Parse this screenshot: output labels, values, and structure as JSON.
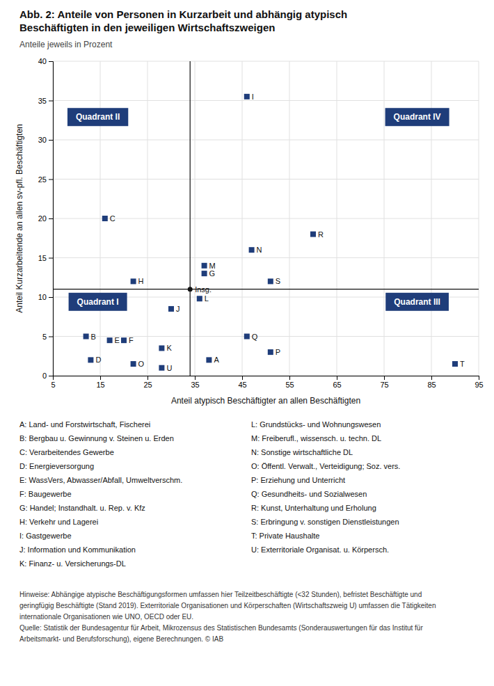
{
  "chart_data": {
    "type": "scatter",
    "title": [
      "Abb. 2: Anteile von Personen in Kurzarbeit und abhängig atypisch",
      "Beschäftigten in den jeweiligen Wirtschaftszweigen"
    ],
    "subtitle": "Anteile jeweils in Prozent",
    "xlabel": "Anteil atypisch Beschäftigter an allen Beschäftigten",
    "ylabel": "Anteil Kurzarbeitende an allen sv-pfl. Beschäftigten",
    "xlim": [
      5,
      95
    ],
    "ylim": [
      0,
      40
    ],
    "xticks": [
      5,
      15,
      25,
      35,
      45,
      55,
      65,
      75,
      85,
      95
    ],
    "yticks": [
      0,
      5,
      10,
      15,
      20,
      25,
      30,
      35,
      40
    ],
    "grid": true,
    "color": "#1f3d7a",
    "marker": "square",
    "categories": [
      "A",
      "B",
      "C",
      "D",
      "E",
      "F",
      "G",
      "H",
      "I",
      "J",
      "K",
      "L",
      "M",
      "N",
      "O",
      "P",
      "Q",
      "R",
      "S",
      "T",
      "U"
    ],
    "x": [
      38,
      12,
      16,
      13,
      17,
      20,
      37,
      22,
      46,
      30,
      28,
      36,
      37,
      47,
      22,
      51,
      46,
      60,
      51,
      90,
      28
    ],
    "values": [
      2.0,
      5.0,
      20.0,
      2.0,
      4.5,
      4.5,
      13.0,
      12.0,
      35.5,
      8.5,
      3.5,
      9.8,
      14.0,
      16.0,
      1.5,
      3.0,
      5.0,
      18.0,
      12.0,
      1.5,
      1.0
    ],
    "reference_point": {
      "label": "Insg.",
      "x": 34,
      "y": 11
    },
    "reference_lines": [
      {
        "axis": "x",
        "value": 34
      },
      {
        "axis": "y",
        "value": 11
      }
    ],
    "annotations": [
      {
        "text": "Quadrant II",
        "x": 14.5,
        "y": 32.9
      },
      {
        "text": "Quadrant IV",
        "x": 82,
        "y": 32.9
      },
      {
        "text": "Quadrant I",
        "x": 14.5,
        "y": 9.4
      },
      {
        "text": "Quadrant III",
        "x": 82,
        "y": 9.4
      }
    ],
    "key": [
      "A: Land- und Forstwirtschaft, Fischerei",
      "B: Bergbau u. Gewinnung v. Steinen u. Erden",
      "C: Verarbeitendes Gewerbe",
      "D: Energieversorgung",
      "E: WassVers, Abwasser/Abfall, Umweltverschm.",
      "F: Baugewerbe",
      "G: Handel; Instandhalt. u. Rep. v. Kfz",
      "H: Verkehr und Lagerei",
      "I: Gastgewerbe",
      "J: Information und Kommunikation",
      "K: Finanz- u. Versicherungs-DL",
      "L: Grundstücks- und Wohnungswesen",
      "M: Freiberufl., wissensch. u. techn. DL",
      "N: Sonstige wirtschaftliche DL",
      "O: Öffentl. Verwalt., Verteidigung; Soz. vers.",
      "P: Erziehung und Unterricht",
      "Q: Gesundheits- und Sozialwesen",
      "R: Kunst, Unterhaltung und Erholung",
      "S: Erbringung v. sonstigen Dienstleistungen",
      "T: Private Haushalte",
      "U: Exterritoriale Organisat. u. Körpersch."
    ],
    "footnote": [
      "Hinweise: Abhängige atypische Beschäftigungsformen umfassen hier Teilzeitbeschäftigte (<32 Stunden), befristet Beschäftigte und",
      "geringfügig Beschäftigte (Stand 2019). Exterritoriale Organisationen und Körperschaften (Wirtschaftszweig U) umfassen die Tätigkeiten",
      "internationale Organisationen wie UNO, OECD oder EU.",
      "Quelle: Statistik der Bundesagentur für Arbeit, Mikrozensus des Statistischen Bundesamts (Sonderauswertungen für das Institut für",
      "Arbeitsmarkt- und Berufsforschung), eigene Berechnungen. © IAB"
    ]
  }
}
